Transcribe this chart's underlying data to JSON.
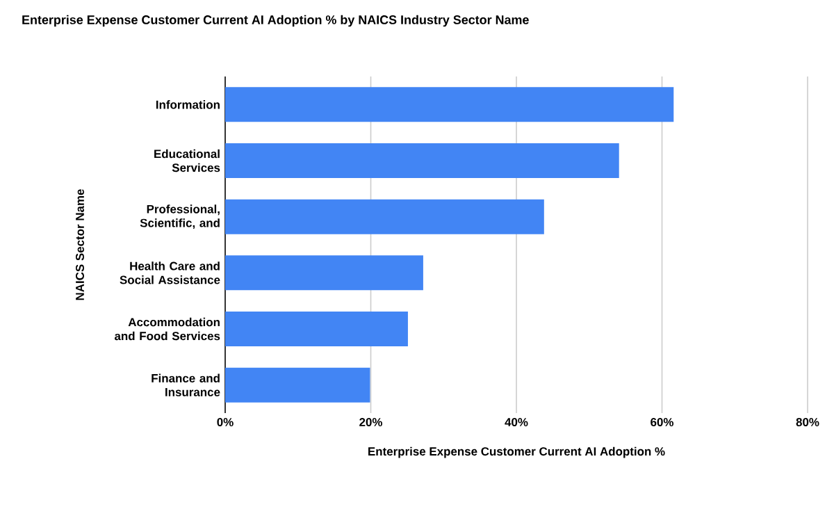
{
  "chart_data": {
    "type": "bar",
    "orientation": "horizontal",
    "title": "Enterprise Expense Customer Current AI Adoption % by NAICS Industry Sector Name",
    "xlabel": "Enterprise Expense Customer Current AI Adoption %",
    "ylabel": "NAICS Sector Name",
    "categories": [
      "Information",
      "Educational Services",
      "Professional, Scientific, and",
      "Health Care and Social Assistance",
      "Accommodation and Food Services",
      "Finance and Insurance"
    ],
    "values": [
      61.6,
      54.1,
      43.8,
      27.2,
      25.1,
      19.9
    ],
    "color": "#4285f4",
    "xlim": [
      0,
      80
    ],
    "xticks": [
      {
        "value": 0,
        "label": "0%"
      },
      {
        "value": 20,
        "label": "20%"
      },
      {
        "value": 40,
        "label": "40%"
      },
      {
        "value": 60,
        "label": "60%"
      },
      {
        "value": 80,
        "label": "80%"
      }
    ],
    "grid": "x"
  }
}
